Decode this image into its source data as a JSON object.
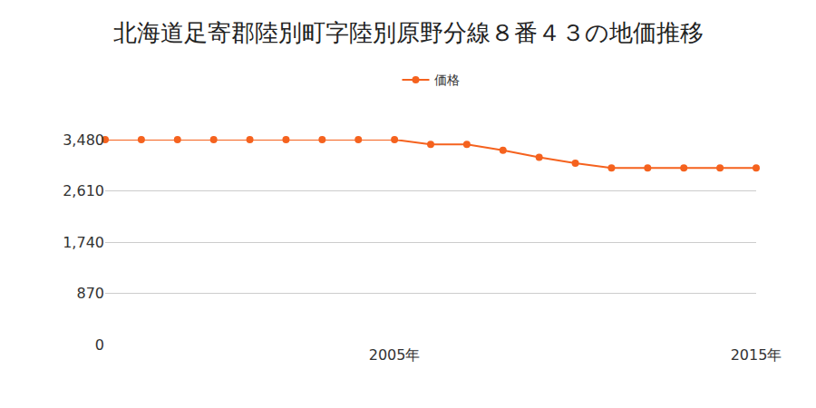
{
  "chart_data": {
    "type": "line",
    "title": "北海道足寄郡陸別町字陸別原野分線８番４３の地価推移",
    "x": [
      1997,
      1998,
      1999,
      2000,
      2001,
      2002,
      2003,
      2004,
      2005,
      2006,
      2007,
      2008,
      2009,
      2010,
      2011,
      2012,
      2013,
      2014,
      2015
    ],
    "series": [
      {
        "name": "価格",
        "color": "#f5621e",
        "marker": "circle",
        "values": [
          3480,
          3480,
          3480,
          3480,
          3480,
          3480,
          3480,
          3480,
          3480,
          3400,
          3400,
          3300,
          3180,
          3080,
          3000,
          3000,
          3000,
          3000,
          3000
        ]
      }
    ],
    "xlim": [
      1997,
      2015
    ],
    "xticks": [
      {
        "value": 2005,
        "label": "2005年"
      },
      {
        "value": 2015,
        "label": "2015年"
      }
    ],
    "ylim": [
      0,
      3480
    ],
    "yticks": [
      0,
      870,
      {
        "value": 1740,
        "label": "1,740"
      },
      {
        "value": 2610,
        "label": "2,610"
      },
      {
        "value": 3480,
        "label": "3,480"
      }
    ],
    "grid": true,
    "legend": "top"
  }
}
